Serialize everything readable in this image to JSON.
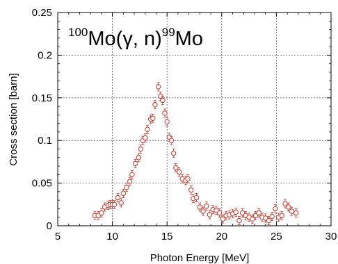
{
  "chart_data": {
    "type": "scatter",
    "title_parts": {
      "mass_in": "100",
      "element_in": "Mo",
      "reaction": "(γ, n)",
      "mass_out": "99",
      "element_out": "Mo"
    },
    "xlabel": "Photon Energy [MeV]",
    "ylabel": "Cross section [barn]",
    "xlim": [
      5,
      30
    ],
    "ylim": [
      0,
      0.25
    ],
    "x_ticks": [
      "5",
      "10",
      "15",
      "20",
      "25",
      "30"
    ],
    "y_ticks": [
      "0",
      "0.05",
      "0.1",
      "0.15",
      "0.2",
      "0.25"
    ],
    "grid": true,
    "marker": "open-circle",
    "marker_color": "#c0392b",
    "series": [
      {
        "x": [
          8.4,
          8.7,
          9.0,
          9.3,
          9.6,
          9.8,
          10.0,
          10.2,
          10.5,
          10.8,
          11.0,
          11.3,
          11.6,
          11.8,
          12.1,
          12.4,
          12.6,
          12.8,
          13.0,
          13.2,
          13.5,
          13.7,
          13.9,
          14.2,
          14.4,
          14.6,
          14.8,
          15.0,
          15.2,
          15.4,
          15.6,
          15.8,
          16.1,
          16.4,
          16.7,
          16.9,
          17.2,
          17.4,
          17.7,
          18.0,
          18.3,
          18.6,
          18.9,
          19.2,
          19.5,
          19.8,
          20.1,
          20.4,
          20.7,
          21.0,
          21.3,
          21.6,
          21.9,
          22.2,
          22.5,
          22.8,
          23.1,
          23.4,
          23.7,
          24.0,
          24.3,
          24.6,
          24.9,
          25.2,
          25.5,
          25.8,
          26.1,
          26.4,
          26.8
        ],
        "y": [
          0.012,
          0.012,
          0.015,
          0.022,
          0.024,
          0.025,
          0.025,
          0.025,
          0.033,
          0.027,
          0.038,
          0.045,
          0.052,
          0.06,
          0.073,
          0.08,
          0.09,
          0.1,
          0.103,
          0.113,
          0.125,
          0.126,
          0.142,
          0.163,
          0.152,
          0.147,
          0.132,
          0.122,
          0.104,
          0.1,
          0.085,
          0.068,
          0.063,
          0.055,
          0.053,
          0.055,
          0.042,
          0.032,
          0.033,
          0.022,
          0.017,
          0.023,
          0.013,
          0.019,
          0.018,
          0.015,
          0.008,
          0.012,
          0.013,
          0.014,
          0.016,
          0.006,
          0.015,
          0.012,
          0.01,
          0.008,
          0.012,
          0.015,
          0.01,
          0.009,
          0.006,
          0.011,
          0.02,
          0.01,
          0.012,
          0.026,
          0.022,
          0.017,
          0.015
        ]
      }
    ]
  }
}
